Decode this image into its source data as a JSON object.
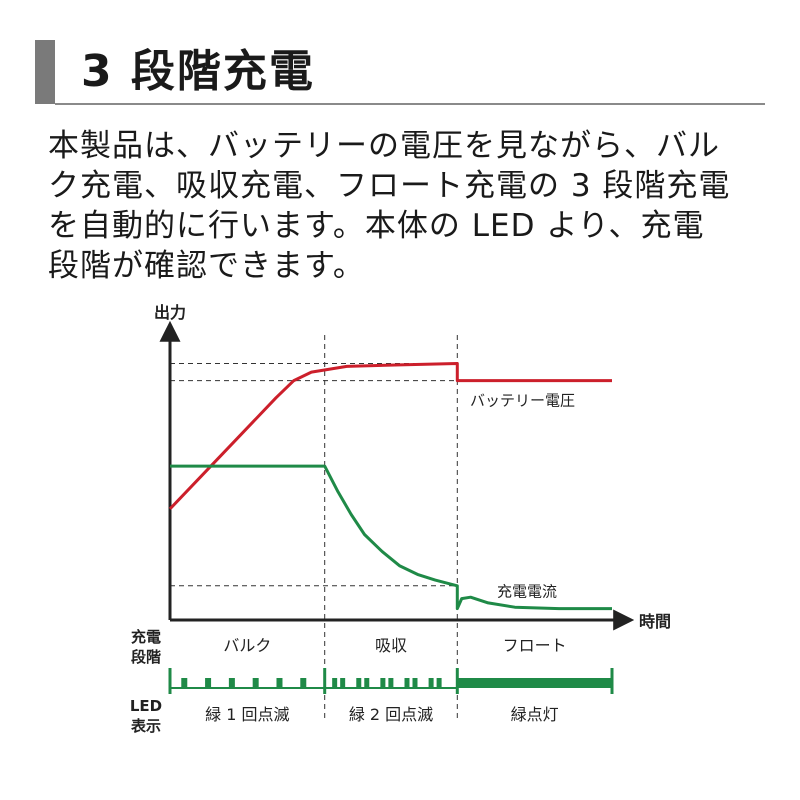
{
  "heading": {
    "title": "3 段階充電"
  },
  "description": [
    "本製品は、バッテリーの電圧を見ながら、バル",
    "ク充電、吸収充電、フロート充電の 3 段階充電",
    "を自動的に行います。本体の LED より、充電",
    "段階が確認できます。"
  ],
  "chart_data": {
    "type": "line",
    "ylabel": "出力",
    "xlabel": "時間",
    "x_range": [
      0,
      100
    ],
    "y_range": [
      0,
      100
    ],
    "grid": false,
    "stage_boundaries": [
      35,
      65
    ],
    "series": [
      {
        "name": "バッテリー電圧",
        "color": "#cc1f2b",
        "points": [
          [
            0,
            39
          ],
          [
            8,
            52
          ],
          [
            16,
            65
          ],
          [
            24,
            78
          ],
          [
            28,
            84
          ],
          [
            32,
            87
          ],
          [
            40,
            89
          ],
          [
            52,
            89.5
          ],
          [
            65,
            90
          ],
          [
            65,
            84
          ],
          [
            100,
            84
          ]
        ]
      },
      {
        "name": "充電電流",
        "color": "#1f8a47",
        "points": [
          [
            0,
            54
          ],
          [
            35,
            54
          ],
          [
            38,
            45
          ],
          [
            41,
            37
          ],
          [
            44,
            30
          ],
          [
            48,
            24
          ],
          [
            52,
            19
          ],
          [
            56,
            16
          ],
          [
            60,
            14
          ],
          [
            65,
            12
          ],
          [
            65,
            4
          ],
          [
            66,
            7.5
          ],
          [
            68,
            8
          ],
          [
            72,
            6
          ],
          [
            78,
            4.5
          ],
          [
            88,
            4
          ],
          [
            100,
            4
          ]
        ]
      }
    ],
    "reference_lines": [
      {
        "y": 90,
        "x_end": 65
      },
      {
        "y": 84,
        "x_end": 65
      },
      {
        "y": 12,
        "x_end": 65
      }
    ],
    "stage_row_label": [
      "充電",
      "段階"
    ],
    "stages": [
      {
        "label": "バルク",
        "start": 0,
        "end": 35
      },
      {
        "label": "吸収",
        "start": 35,
        "end": 65
      },
      {
        "label": "フロート",
        "start": 65,
        "end": 100
      }
    ],
    "led_row_label": [
      "LED",
      "表示"
    ],
    "led_color": "#1f8a47",
    "led_states": [
      {
        "label": "緑 1 回点滅",
        "start": 0,
        "end": 35,
        "mode": "blink",
        "blinks": 6
      },
      {
        "label": "緑 2 回点滅",
        "start": 35,
        "end": 65,
        "mode": "double-blink",
        "blinks": 5
      },
      {
        "label": "緑点灯",
        "start": 65,
        "end": 100,
        "mode": "solid"
      }
    ]
  }
}
